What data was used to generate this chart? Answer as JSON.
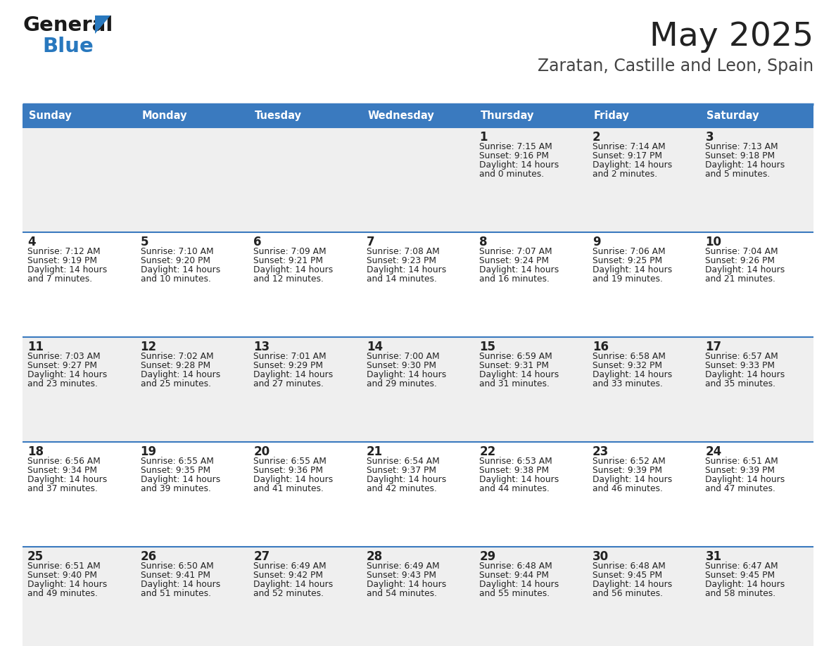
{
  "title": "May 2025",
  "subtitle": "Zaratan, Castille and Leon, Spain",
  "days_of_week": [
    "Sunday",
    "Monday",
    "Tuesday",
    "Wednesday",
    "Thursday",
    "Friday",
    "Saturday"
  ],
  "header_bg": "#3a7abf",
  "header_text": "#ffffff",
  "row_bg_odd": "#efefef",
  "row_bg_even": "#ffffff",
  "cell_text_color": "#222222",
  "border_color": "#3a7abf",
  "title_color": "#222222",
  "subtitle_color": "#444444",
  "calendar_data": [
    [
      null,
      null,
      null,
      null,
      {
        "day": 1,
        "sunrise": "7:15 AM",
        "sunset": "9:16 PM",
        "daylight": "14 hours",
        "daylight2": "and 0 minutes."
      },
      {
        "day": 2,
        "sunrise": "7:14 AM",
        "sunset": "9:17 PM",
        "daylight": "14 hours",
        "daylight2": "and 2 minutes."
      },
      {
        "day": 3,
        "sunrise": "7:13 AM",
        "sunset": "9:18 PM",
        "daylight": "14 hours",
        "daylight2": "and 5 minutes."
      }
    ],
    [
      {
        "day": 4,
        "sunrise": "7:12 AM",
        "sunset": "9:19 PM",
        "daylight": "14 hours",
        "daylight2": "and 7 minutes."
      },
      {
        "day": 5,
        "sunrise": "7:10 AM",
        "sunset": "9:20 PM",
        "daylight": "14 hours",
        "daylight2": "and 10 minutes."
      },
      {
        "day": 6,
        "sunrise": "7:09 AM",
        "sunset": "9:21 PM",
        "daylight": "14 hours",
        "daylight2": "and 12 minutes."
      },
      {
        "day": 7,
        "sunrise": "7:08 AM",
        "sunset": "9:23 PM",
        "daylight": "14 hours",
        "daylight2": "and 14 minutes."
      },
      {
        "day": 8,
        "sunrise": "7:07 AM",
        "sunset": "9:24 PM",
        "daylight": "14 hours",
        "daylight2": "and 16 minutes."
      },
      {
        "day": 9,
        "sunrise": "7:06 AM",
        "sunset": "9:25 PM",
        "daylight": "14 hours",
        "daylight2": "and 19 minutes."
      },
      {
        "day": 10,
        "sunrise": "7:04 AM",
        "sunset": "9:26 PM",
        "daylight": "14 hours",
        "daylight2": "and 21 minutes."
      }
    ],
    [
      {
        "day": 11,
        "sunrise": "7:03 AM",
        "sunset": "9:27 PM",
        "daylight": "14 hours",
        "daylight2": "and 23 minutes."
      },
      {
        "day": 12,
        "sunrise": "7:02 AM",
        "sunset": "9:28 PM",
        "daylight": "14 hours",
        "daylight2": "and 25 minutes."
      },
      {
        "day": 13,
        "sunrise": "7:01 AM",
        "sunset": "9:29 PM",
        "daylight": "14 hours",
        "daylight2": "and 27 minutes."
      },
      {
        "day": 14,
        "sunrise": "7:00 AM",
        "sunset": "9:30 PM",
        "daylight": "14 hours",
        "daylight2": "and 29 minutes."
      },
      {
        "day": 15,
        "sunrise": "6:59 AM",
        "sunset": "9:31 PM",
        "daylight": "14 hours",
        "daylight2": "and 31 minutes."
      },
      {
        "day": 16,
        "sunrise": "6:58 AM",
        "sunset": "9:32 PM",
        "daylight": "14 hours",
        "daylight2": "and 33 minutes."
      },
      {
        "day": 17,
        "sunrise": "6:57 AM",
        "sunset": "9:33 PM",
        "daylight": "14 hours",
        "daylight2": "and 35 minutes."
      }
    ],
    [
      {
        "day": 18,
        "sunrise": "6:56 AM",
        "sunset": "9:34 PM",
        "daylight": "14 hours",
        "daylight2": "and 37 minutes."
      },
      {
        "day": 19,
        "sunrise": "6:55 AM",
        "sunset": "9:35 PM",
        "daylight": "14 hours",
        "daylight2": "and 39 minutes."
      },
      {
        "day": 20,
        "sunrise": "6:55 AM",
        "sunset": "9:36 PM",
        "daylight": "14 hours",
        "daylight2": "and 41 minutes."
      },
      {
        "day": 21,
        "sunrise": "6:54 AM",
        "sunset": "9:37 PM",
        "daylight": "14 hours",
        "daylight2": "and 42 minutes."
      },
      {
        "day": 22,
        "sunrise": "6:53 AM",
        "sunset": "9:38 PM",
        "daylight": "14 hours",
        "daylight2": "and 44 minutes."
      },
      {
        "day": 23,
        "sunrise": "6:52 AM",
        "sunset": "9:39 PM",
        "daylight": "14 hours",
        "daylight2": "and 46 minutes."
      },
      {
        "day": 24,
        "sunrise": "6:51 AM",
        "sunset": "9:39 PM",
        "daylight": "14 hours",
        "daylight2": "and 47 minutes."
      }
    ],
    [
      {
        "day": 25,
        "sunrise": "6:51 AM",
        "sunset": "9:40 PM",
        "daylight": "14 hours",
        "daylight2": "and 49 minutes."
      },
      {
        "day": 26,
        "sunrise": "6:50 AM",
        "sunset": "9:41 PM",
        "daylight": "14 hours",
        "daylight2": "and 51 minutes."
      },
      {
        "day": 27,
        "sunrise": "6:49 AM",
        "sunset": "9:42 PM",
        "daylight": "14 hours",
        "daylight2": "and 52 minutes."
      },
      {
        "day": 28,
        "sunrise": "6:49 AM",
        "sunset": "9:43 PM",
        "daylight": "14 hours",
        "daylight2": "and 54 minutes."
      },
      {
        "day": 29,
        "sunrise": "6:48 AM",
        "sunset": "9:44 PM",
        "daylight": "14 hours",
        "daylight2": "and 55 minutes."
      },
      {
        "day": 30,
        "sunrise": "6:48 AM",
        "sunset": "9:45 PM",
        "daylight": "14 hours",
        "daylight2": "and 56 minutes."
      },
      {
        "day": 31,
        "sunrise": "6:47 AM",
        "sunset": "9:45 PM",
        "daylight": "14 hours",
        "daylight2": "and 58 minutes."
      }
    ]
  ],
  "logo_general_color": "#1a1a1a",
  "logo_blue_color": "#2878be",
  "logo_triangle_color": "#2878be"
}
